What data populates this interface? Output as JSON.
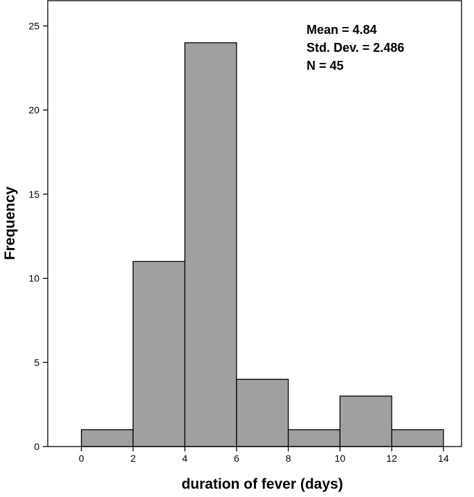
{
  "chart_data": {
    "type": "bar",
    "subtype": "histogram",
    "bins": [
      {
        "start": 0,
        "end": 2,
        "value": 1
      },
      {
        "start": 2,
        "end": 4,
        "value": 11
      },
      {
        "start": 4,
        "end": 6,
        "value": 24
      },
      {
        "start": 6,
        "end": 8,
        "value": 4
      },
      {
        "start": 8,
        "end": 10,
        "value": 1
      },
      {
        "start": 10,
        "end": 12,
        "value": 3
      },
      {
        "start": 12,
        "end": 14,
        "value": 1
      }
    ],
    "xlabel": "duration of fever (days)",
    "ylabel": "Frequency",
    "xlim": [
      -1.3,
      14.7
    ],
    "ylim": [
      0,
      26.5
    ],
    "x_ticks": [
      0,
      2,
      4,
      6,
      8,
      10,
      12,
      14
    ],
    "y_ticks": [
      0,
      5,
      10,
      15,
      20,
      25
    ],
    "grid": false,
    "bar_color": "#a0a0a0",
    "stats": {
      "mean": "Mean = 4.84",
      "std_dev": "Std. Dev. = 2.486",
      "n": "N = 45"
    }
  }
}
